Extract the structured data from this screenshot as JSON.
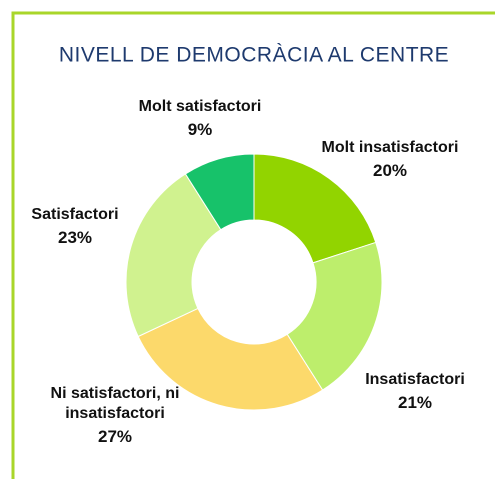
{
  "chart_data": {
    "type": "donut",
    "title": "NIVELL DE DEMOCRÀCIA AL CENTRE",
    "categories": [
      "Molt insatisfactori",
      "Insatisfactori",
      "Ni satisfactori, ni insatisfactori",
      "Satisfactori",
      "Molt satisfactori"
    ],
    "values": [
      20,
      21,
      27,
      23,
      9
    ],
    "value_labels": [
      "20%",
      "21%",
      "27%",
      "23%",
      "9%"
    ],
    "colors": [
      "#92d400",
      "#bdee6c",
      "#fcd96b",
      "#d0f28f",
      "#17c26a"
    ]
  }
}
